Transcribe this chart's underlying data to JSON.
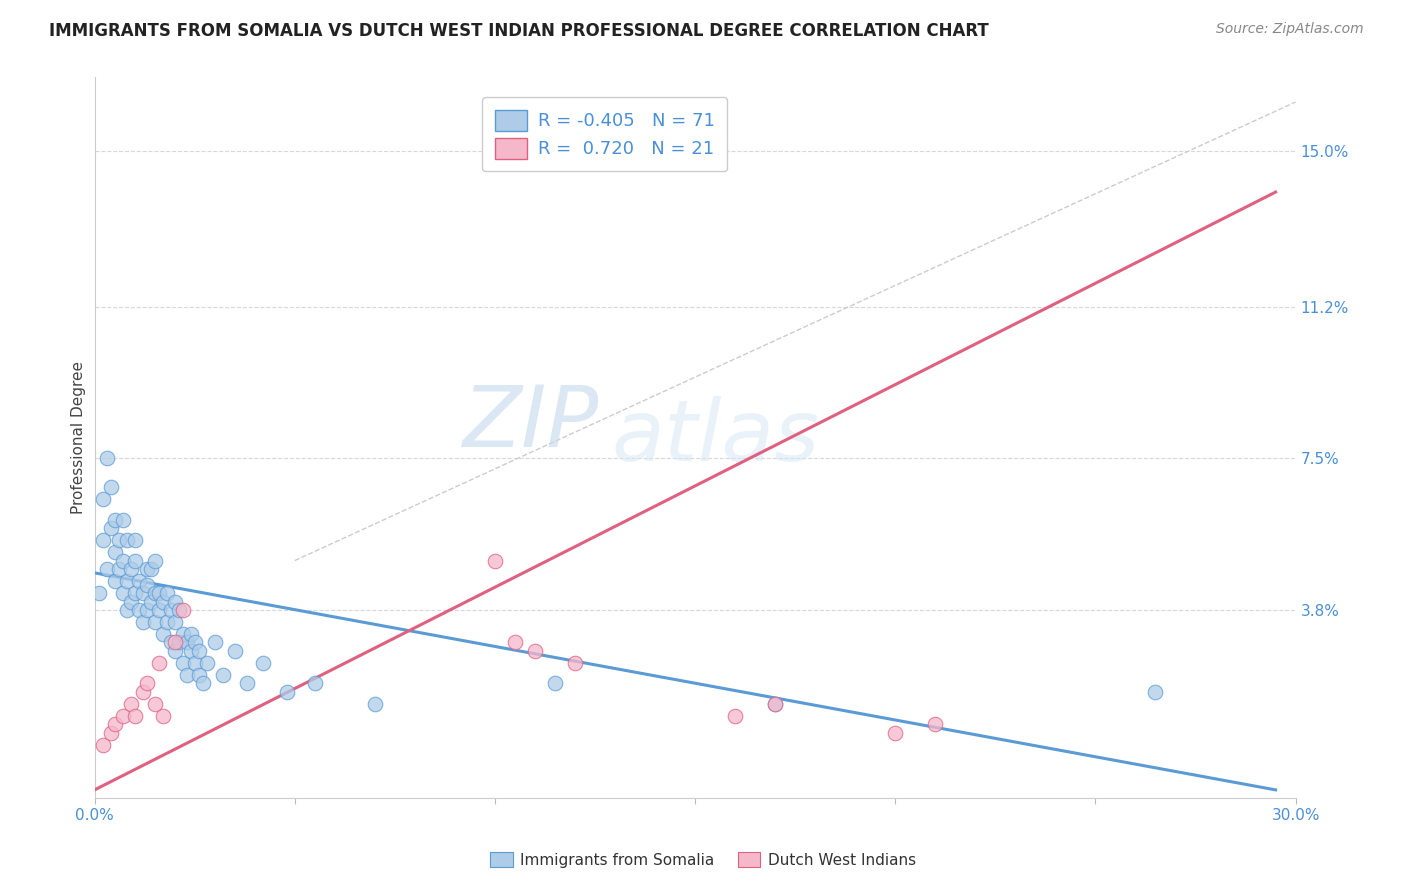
{
  "title": "IMMIGRANTS FROM SOMALIA VS DUTCH WEST INDIAN PROFESSIONAL DEGREE CORRELATION CHART",
  "source": "Source: ZipAtlas.com",
  "ylabel": "Professional Degree",
  "ytick_labels": [
    "15.0%",
    "11.2%",
    "7.5%",
    "3.8%"
  ],
  "ytick_values": [
    0.15,
    0.112,
    0.075,
    0.038
  ],
  "xlim": [
    0.0,
    0.3
  ],
  "ylim": [
    -0.008,
    0.168
  ],
  "watermark_zip": "ZIP",
  "watermark_atlas": "atlas",
  "legend_somalia_r": "-0.405",
  "legend_somalia_n": "71",
  "legend_dutch_r": "0.720",
  "legend_dutch_n": "21",
  "somalia_color": "#aecce8",
  "dutch_color": "#f5b8cb",
  "somalia_line_color": "#5b9bd5",
  "dutch_line_color": "#e06080",
  "diag_line_color": "#cccccc",
  "somalia_points_x": [
    0.001,
    0.002,
    0.002,
    0.003,
    0.003,
    0.004,
    0.004,
    0.005,
    0.005,
    0.005,
    0.006,
    0.006,
    0.007,
    0.007,
    0.007,
    0.008,
    0.008,
    0.008,
    0.009,
    0.009,
    0.01,
    0.01,
    0.01,
    0.011,
    0.011,
    0.012,
    0.012,
    0.013,
    0.013,
    0.013,
    0.014,
    0.014,
    0.015,
    0.015,
    0.015,
    0.016,
    0.016,
    0.017,
    0.017,
    0.018,
    0.018,
    0.019,
    0.019,
    0.02,
    0.02,
    0.02,
    0.021,
    0.021,
    0.022,
    0.022,
    0.023,
    0.023,
    0.024,
    0.024,
    0.025,
    0.025,
    0.026,
    0.026,
    0.027,
    0.028,
    0.03,
    0.032,
    0.035,
    0.038,
    0.042,
    0.048,
    0.055,
    0.07,
    0.115,
    0.17,
    0.265
  ],
  "somalia_points_y": [
    0.042,
    0.065,
    0.055,
    0.048,
    0.075,
    0.058,
    0.068,
    0.045,
    0.052,
    0.06,
    0.048,
    0.055,
    0.042,
    0.05,
    0.06,
    0.038,
    0.045,
    0.055,
    0.04,
    0.048,
    0.055,
    0.042,
    0.05,
    0.038,
    0.045,
    0.035,
    0.042,
    0.048,
    0.038,
    0.044,
    0.04,
    0.048,
    0.035,
    0.042,
    0.05,
    0.038,
    0.042,
    0.032,
    0.04,
    0.035,
    0.042,
    0.03,
    0.038,
    0.035,
    0.028,
    0.04,
    0.03,
    0.038,
    0.032,
    0.025,
    0.03,
    0.022,
    0.028,
    0.032,
    0.025,
    0.03,
    0.022,
    0.028,
    0.02,
    0.025,
    0.03,
    0.022,
    0.028,
    0.02,
    0.025,
    0.018,
    0.02,
    0.015,
    0.02,
    0.015,
    0.018
  ],
  "dutch_points_x": [
    0.002,
    0.004,
    0.005,
    0.007,
    0.009,
    0.01,
    0.012,
    0.013,
    0.015,
    0.016,
    0.017,
    0.02,
    0.022,
    0.1,
    0.105,
    0.11,
    0.12,
    0.16,
    0.17,
    0.2,
    0.21
  ],
  "dutch_points_y": [
    0.005,
    0.008,
    0.01,
    0.012,
    0.015,
    0.012,
    0.018,
    0.02,
    0.015,
    0.025,
    0.012,
    0.03,
    0.038,
    0.05,
    0.03,
    0.028,
    0.025,
    0.012,
    0.015,
    0.008,
    0.01
  ],
  "somalia_line_x": [
    0.0,
    0.295
  ],
  "somalia_line_y": [
    0.047,
    -0.006
  ],
  "dutch_line_x": [
    0.0,
    0.295
  ],
  "dutch_line_y": [
    -0.006,
    0.14
  ],
  "diag_line_x": [
    0.05,
    0.3
  ],
  "diag_line_y": [
    0.05,
    0.162
  ],
  "background_color": "#ffffff",
  "grid_color": "#d8d8d8"
}
